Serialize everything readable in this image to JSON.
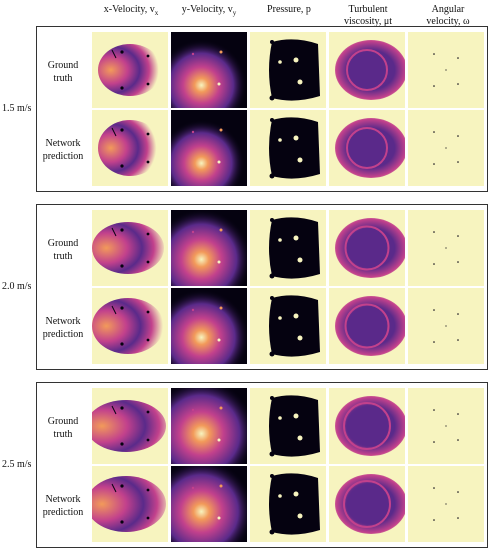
{
  "columns": [
    {
      "id": "vx",
      "line1": "x-Velocity, v",
      "sub": "x",
      "line2": ""
    },
    {
      "id": "vy",
      "line1": "y-Velocity, v",
      "sub": "y",
      "line2": ""
    },
    {
      "id": "p",
      "line1": "Pressure, p",
      "sub": "",
      "line2": ""
    },
    {
      "id": "mu",
      "line1": "Turbulent",
      "sub": "",
      "line2": "viscosity, μt"
    },
    {
      "id": "w",
      "line1": "Angular",
      "sub": "",
      "line2": "velocity, ω"
    }
  ],
  "row_labels": {
    "truth_1": "Ground",
    "truth_2": "truth",
    "pred_1": "Network",
    "pred_2": "prediction"
  },
  "groups": [
    {
      "speed": "1.5 m/s"
    },
    {
      "speed": "2.0 m/s"
    },
    {
      "speed": "2.5 m/s"
    }
  ],
  "colors": {
    "background_field": "#f7f4bf",
    "dark_field": "#050210",
    "purple": "#5a2a8a",
    "magenta": "#c2418c",
    "orange": "#f29a5a"
  }
}
